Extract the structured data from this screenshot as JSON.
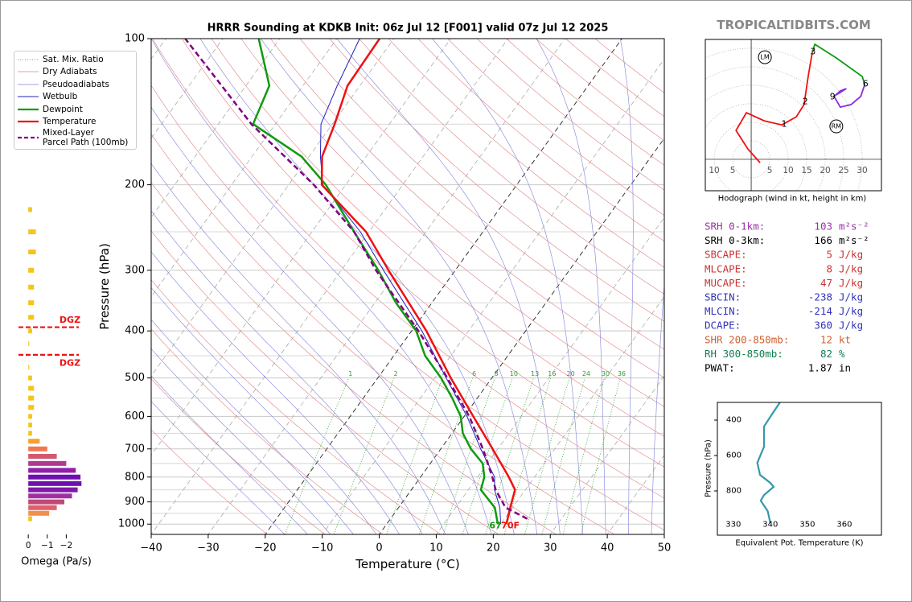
{
  "site": "TROPICALTIDBITS.COM",
  "chart_data": [
    {
      "type": "skewt",
      "title": "HRRR Sounding at KDKB Init: 06z Jul 12 [F001] valid 07z Jul 12 2025",
      "x_label": "Temperature (°C)",
      "y_label": "Pressure (hPa)",
      "xlim": [
        -40,
        50
      ],
      "xticks": [
        {
          "value": -40,
          "label": "−40"
        },
        {
          "value": -30,
          "label": "−30"
        },
        {
          "value": -20,
          "label": "−20"
        },
        {
          "value": -10,
          "label": "−10"
        },
        0,
        10,
        20,
        30,
        40,
        50
      ],
      "ylim": [
        1050,
        100
      ],
      "log_scale": true,
      "yticks": [
        100,
        200,
        300,
        400,
        500,
        600,
        700,
        800,
        900,
        1000
      ],
      "y_minor_ticks": [
        150,
        250,
        350,
        450,
        550,
        650,
        750,
        850,
        950
      ],
      "background_lines": [
        {
          "name": "Sat. Mix. Ratio",
          "color": "#2ca02c"
        },
        {
          "name": "Dry Adiabats",
          "color": "#e08080"
        },
        {
          "name": "Pseudoadiabats",
          "color": "#8080d8"
        }
      ],
      "mixing_ratio_labels": [
        1,
        2,
        4,
        6,
        8,
        10,
        13,
        16,
        20,
        24,
        30,
        36
      ],
      "series": [
        {
          "name": "Wetbulb",
          "color": "#2020c0",
          "pressure": [
            1000,
            925,
            850,
            800,
            700,
            600,
            500,
            400,
            300,
            250,
            200,
            175,
            150,
            125,
            100
          ],
          "values": [
            20.0,
            17.8,
            14.6,
            13.0,
            7.0,
            0.5,
            -8.0,
            -18.2,
            -32.6,
            -41.5,
            -54.0,
            -58.0,
            -62.0,
            -64.0,
            -66.0
          ]
        },
        {
          "name": "Dewpoint",
          "color": "#109a10",
          "pressure": [
            1000,
            925,
            850,
            800,
            750,
            700,
            650,
            600,
            550,
            500,
            450,
            400,
            350,
            300,
            250,
            200,
            175,
            150,
            125,
            100
          ],
          "values": [
            19.5,
            16.9,
            12.2,
            11.2,
            9.2,
            5.3,
            1.9,
            -0.6,
            -4.4,
            -8.9,
            -14.5,
            -19.2,
            -26.3,
            -33.5,
            -42.6,
            -53.5,
            -61.3,
            -73.9,
            -75.9,
            -83.7
          ]
        },
        {
          "name": "Temperature",
          "color": "#ee1111",
          "pressure": [
            1000,
            925,
            850,
            800,
            700,
            600,
            500,
            400,
            300,
            250,
            200,
            175,
            150,
            125,
            100
          ],
          "values": [
            21.0,
            19.6,
            18.2,
            15.5,
            9.1,
            1.6,
            -7.2,
            -17.4,
            -31.7,
            -40.5,
            -54.2,
            -57.7,
            -59.6,
            -62.2,
            -62.5
          ]
        },
        {
          "name": "Mixed-Layer\nParcel Path (100mb)",
          "color": "#800080",
          "pressure": [
            975,
            925,
            850,
            800,
            700,
            600,
            500,
            400,
            300,
            250,
            200,
            150,
            100
          ],
          "values": [
            24.0,
            18.8,
            14.8,
            12.6,
            7.4,
            0.9,
            -7.8,
            -18.8,
            -33.9,
            -42.6,
            -55.6,
            -74.2,
            -96.6
          ]
        }
      ],
      "surface_dewpoint_label": "67",
      "surface_temperature_label": "70F"
    },
    {
      "type": "hodograph",
      "x_label": "Hodograph (wind in kt, height in km)",
      "xlim": [
        -12.4,
        35.2
      ],
      "ylim": [
        -8.5,
        32.4
      ],
      "xticks": [
        {
          "value": -10,
          "label": "10"
        },
        {
          "value": -5,
          "label": "5"
        },
        5,
        10,
        15,
        20,
        25,
        30
      ],
      "series": [
        {
          "color": "#ee1111",
          "u": [
            2.4,
            -0.9,
            -4.1,
            -1.3,
            3.5,
            8.3,
            12.2,
            14.3,
            15.4,
            16.5
          ],
          "v": [
            -0.9,
            2.8,
            7.8,
            12.6,
            10.4,
            9.3,
            11.5,
            14.8,
            22.4,
            28.9
          ]
        },
        {
          "color": "#109a10",
          "u": [
            16.5,
            17.2,
            23.0,
            30.0,
            30.7
          ],
          "v": [
            28.9,
            31.1,
            27.4,
            22.4,
            20.2
          ]
        },
        {
          "color": "#8a2be2",
          "u": [
            30.7,
            29.6,
            27.0,
            24.1,
            22.4,
            24.1,
            25.7,
            23.0
          ],
          "v": [
            20.2,
            17.0,
            14.8,
            14.1,
            17.0,
            18.5,
            19.1,
            17.4
          ]
        }
      ],
      "height_points": {
        "km": [
          1,
          2,
          3,
          6,
          9
        ],
        "u": [
          8.9,
          14.6,
          16.7,
          30.9,
          22.0
        ],
        "v": [
          9.6,
          15.7,
          29.1,
          20.4,
          17.0
        ]
      },
      "storm_motion": {
        "labels": [
          "LM",
          "RM"
        ],
        "u": [
          3.7,
          23.0
        ],
        "v": [
          27.6,
          8.9
        ]
      }
    },
    {
      "type": "line",
      "x_label": "Equivalent Pot. Temperature (K)",
      "y_label": "Pressure (hPa)",
      "xlim": [
        325.7,
        370
      ],
      "xticks": [
        330,
        340,
        350,
        360
      ],
      "ylim": [
        1050,
        300
      ],
      "yticks": [
        400,
        600,
        800
      ],
      "color": "#3399aa",
      "pressure": [
        300,
        368,
        436,
        550,
        641,
        709,
        755,
        777,
        823,
        855,
        914,
        982
      ],
      "values": [
        342.6,
        340.4,
        338.3,
        338.3,
        336.5,
        337.2,
        340.0,
        340.9,
        338.3,
        337.4,
        339.3,
        340.0
      ]
    },
    {
      "type": "omega",
      "x_label": "Omega (Pa/s)",
      "xlim": [
        0.6,
        -3.0
      ],
      "xticks": [
        0,
        {
          "value": -1,
          "label": "−1"
        },
        {
          "value": -2,
          "label": "−2"
        }
      ],
      "ylim": [
        1050,
        100
      ],
      "pressure": [
        225,
        250,
        275,
        300,
        325,
        350,
        375,
        400,
        425,
        475,
        500,
        525,
        550,
        575,
        600,
        625,
        650,
        675,
        700,
        725,
        750,
        775,
        800,
        825,
        850,
        875,
        900,
        925,
        950,
        975
      ],
      "values": [
        -0.2,
        -0.4,
        -0.4,
        -0.3,
        -0.3,
        -0.3,
        -0.3,
        -0.2,
        -0.05,
        -0.05,
        -0.2,
        -0.3,
        -0.3,
        -0.3,
        -0.2,
        -0.2,
        -0.2,
        -0.6,
        -1.0,
        -1.5,
        -2.0,
        -2.5,
        -2.75,
        -2.8,
        -2.6,
        -2.3,
        -1.9,
        -1.5,
        -1.1,
        -0.2
      ],
      "colors": [
        "#f5c518",
        "#f5c518",
        "#f5c518",
        "#f5c518",
        "#f5c518",
        "#f5c518",
        "#f5c518",
        "#f5c518",
        "#f5c518",
        "#f5c518",
        "#f5c518",
        "#f5c518",
        "#f5c518",
        "#f5c518",
        "#f5c518",
        "#f5c518",
        "#f5c518",
        "#f5a030",
        "#f07850",
        "#d05a70",
        "#b03a90",
        "#9020a8",
        "#7010b0",
        "#7010b0",
        "#8018a8",
        "#a030a0",
        "#c04878",
        "#e06068",
        "#f09050",
        "#f5c518"
      ],
      "dgz_pressures": [
        393,
        448
      ],
      "dgz_labels": [
        "DGZ",
        "DGZ"
      ]
    }
  ],
  "indices": [
    {
      "label": "SRH 0-1km:",
      "value": 103,
      "unit": "m²s⁻²",
      "color": "#9b30a8"
    },
    {
      "label": "SRH 0-3km:",
      "value": 166,
      "unit": "m²s⁻²",
      "color": "#000000"
    },
    {
      "label": "SBCAPE:",
      "value": 5,
      "unit": "J/kg",
      "color": "#cc3333"
    },
    {
      "label": "MLCAPE:",
      "value": 8,
      "unit": "J/kg",
      "color": "#cc3333"
    },
    {
      "label": "MUCAPE:",
      "value": 47,
      "unit": "J/kg",
      "color": "#cc3333"
    },
    {
      "label": "SBCIN:",
      "value": -238,
      "unit": "J/kg",
      "color": "#3333bb"
    },
    {
      "label": "MLCIN:",
      "value": -214,
      "unit": "J/kg",
      "color": "#3333bb"
    },
    {
      "label": "DCAPE:",
      "value": 360,
      "unit": "J/kg",
      "color": "#3333bb"
    },
    {
      "label": "SHR 200-850mb:",
      "value": 12,
      "unit": "kt",
      "color": "#d06030"
    },
    {
      "label": "RH 300-850mb:",
      "value": 82,
      "unit": "%",
      "color": "#108050"
    },
    {
      "label": "PWAT:",
      "value": 1.87,
      "unit": "in",
      "color": "#000000"
    }
  ]
}
